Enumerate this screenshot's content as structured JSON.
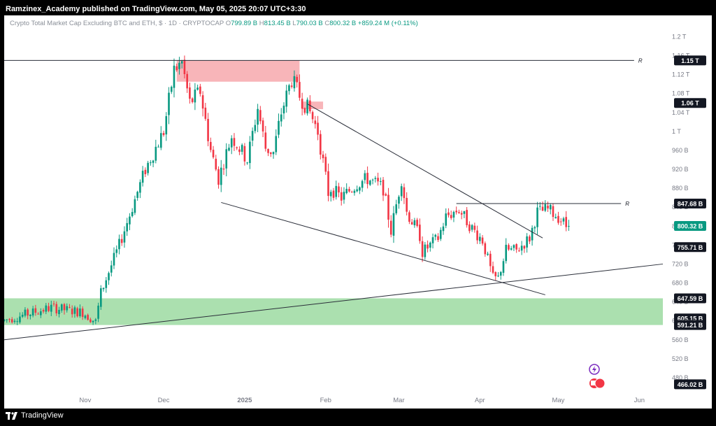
{
  "header": {
    "publisher": "Ramzinex_Academy published on TradingView.com, May 05, 2025 20:07 UTC+3:30"
  },
  "legend": {
    "symbol": "Crypto Total Market Cap Excluding BTC and ETH, $ · 1D · CRYPTOCAP",
    "open_label": "O",
    "open": "799.89 B",
    "high_label": "H",
    "high": "813.45 B",
    "low_label": "L",
    "low": "790.03 B",
    "close_label": "C",
    "close": "800.32 B",
    "change": "+859.24 M (+0.11%)"
  },
  "footer": {
    "brand": "TradingView"
  },
  "colors": {
    "up": "#089981",
    "down": "#f23645",
    "supply": "#f7a8ad",
    "demand": "#8fd694"
  },
  "chart_data": {
    "type": "candlestick",
    "title": "Crypto Total Market Cap Excluding BTC and ETH",
    "timeframe": "1D",
    "y_axis": {
      "unit": "USD",
      "ticks": [
        "1.2 T",
        "1.16 T",
        "1.12 T",
        "1.08 T",
        "1.04 T",
        "1 T",
        "960 B",
        "920 B",
        "880 B",
        "840 B",
        "800 B",
        "760 B",
        "720 B",
        "680 B",
        "640 B",
        "600 B",
        "560 B",
        "520 B",
        "480 B"
      ],
      "tick_values": [
        1200,
        1160,
        1120,
        1080,
        1040,
        1000,
        960,
        920,
        880,
        840,
        800,
        760,
        720,
        680,
        640,
        600,
        560,
        520,
        480
      ],
      "range": [
        440,
        1245
      ]
    },
    "x_axis": {
      "ticks": [
        "Nov",
        "Dec",
        "2025",
        "Feb",
        "Mar",
        "Apr",
        "May",
        "Jun"
      ],
      "tick_dates": [
        "2024-11-01",
        "2024-12-01",
        "2025-01-01",
        "2025-02-01",
        "2025-03-01",
        "2025-04-01",
        "2025-05-01",
        "2025-06-01"
      ],
      "range": [
        "2024-10-01",
        "2025-06-10"
      ]
    },
    "price_labels": [
      {
        "text": "1.15 T",
        "value": 1150,
        "style": "black"
      },
      {
        "text": "1.06 T",
        "value": 1060,
        "style": "black"
      },
      {
        "text": "847.68 B",
        "value": 847.68,
        "style": "black"
      },
      {
        "text": "800.32 B",
        "value": 800.32,
        "style": "green"
      },
      {
        "text": "755.71 B",
        "value": 755.71,
        "style": "black"
      },
      {
        "text": "647.59 B",
        "value": 647.59,
        "style": "black"
      },
      {
        "text": "605.15 B",
        "value": 605.15,
        "style": "black"
      },
      {
        "text": "591.21 B",
        "value": 591.21,
        "style": "black"
      },
      {
        "text": "466.02 B",
        "value": 466.02,
        "style": "black"
      }
    ],
    "zones": [
      {
        "kind": "supply",
        "from": "2024-12-06",
        "to": "2025-01-22",
        "low": 1105,
        "high": 1150
      },
      {
        "kind": "supply",
        "from": "2025-01-23",
        "to": "2025-01-31",
        "low": 1047,
        "high": 1063
      },
      {
        "kind": "demand",
        "from": "2024-10-01",
        "to": "2025-06-10",
        "low": 591.21,
        "high": 647.59
      }
    ],
    "lines": [
      {
        "kind": "resistance",
        "label": "R",
        "from": [
          "2024-10-01",
          1150
        ],
        "to": [
          "2025-05-30",
          1150
        ]
      },
      {
        "kind": "resistance",
        "label": "R",
        "from": [
          "2025-03-23",
          847.68
        ],
        "to": [
          "2025-05-25",
          847.68
        ]
      },
      {
        "kind": "trend",
        "from": [
          "2025-01-25",
          1058
        ],
        "to": [
          "2025-04-25",
          775
        ]
      },
      {
        "kind": "trend",
        "from": [
          "2024-12-23",
          850
        ],
        "to": [
          "2025-04-26",
          655
        ]
      },
      {
        "kind": "trend",
        "from": [
          "2024-10-01",
          560
        ],
        "to": [
          "2025-06-10",
          720
        ]
      }
    ],
    "anchor_points": [
      [
        "2024-10-01",
        600
      ],
      [
        "2024-10-20",
        628
      ],
      [
        "2024-11-01",
        618
      ],
      [
        "2024-11-06",
        598
      ],
      [
        "2024-11-08",
        660
      ],
      [
        "2024-11-15",
        760
      ],
      [
        "2024-11-25",
        920
      ],
      [
        "2024-12-02",
        1000
      ],
      [
        "2024-12-06",
        1130
      ],
      [
        "2024-12-09",
        1145
      ],
      [
        "2024-12-12",
        1060
      ],
      [
        "2024-12-16",
        1085
      ],
      [
        "2024-12-20",
        960
      ],
      [
        "2024-12-23",
        900
      ],
      [
        "2024-12-28",
        990
      ],
      [
        "2025-01-03",
        940
      ],
      [
        "2025-01-07",
        1050
      ],
      [
        "2025-01-10",
        965
      ],
      [
        "2025-01-13",
        955
      ],
      [
        "2025-01-16",
        1040
      ],
      [
        "2025-01-20",
        1110
      ],
      [
        "2025-01-23",
        1075
      ],
      [
        "2025-01-27",
        1040
      ],
      [
        "2025-01-30",
        1000
      ],
      [
        "2025-02-03",
        870
      ],
      [
        "2025-02-04",
        880
      ],
      [
        "2025-02-08",
        860
      ],
      [
        "2025-02-14",
        890
      ],
      [
        "2025-02-18",
        900
      ],
      [
        "2025-02-24",
        880
      ],
      [
        "2025-02-27",
        790
      ],
      [
        "2025-03-03",
        900
      ],
      [
        "2025-03-05",
        830
      ],
      [
        "2025-03-10",
        780
      ],
      [
        "2025-03-11",
        745
      ],
      [
        "2025-03-17",
        775
      ],
      [
        "2025-03-20",
        820
      ],
      [
        "2025-03-25",
        835
      ],
      [
        "2025-03-30",
        795
      ],
      [
        "2025-04-03",
        770
      ],
      [
        "2025-04-07",
        690
      ],
      [
        "2025-04-09",
        690
      ],
      [
        "2025-04-12",
        750
      ],
      [
        "2025-04-16",
        748
      ],
      [
        "2025-04-21",
        775
      ],
      [
        "2025-04-24",
        830
      ],
      [
        "2025-04-28",
        835
      ],
      [
        "2025-05-02",
        820
      ],
      [
        "2025-05-05",
        800
      ]
    ],
    "last": {
      "date": "2025-05-05",
      "open": 799.89,
      "high": 813.45,
      "low": 790.03,
      "close": 800.32
    }
  }
}
